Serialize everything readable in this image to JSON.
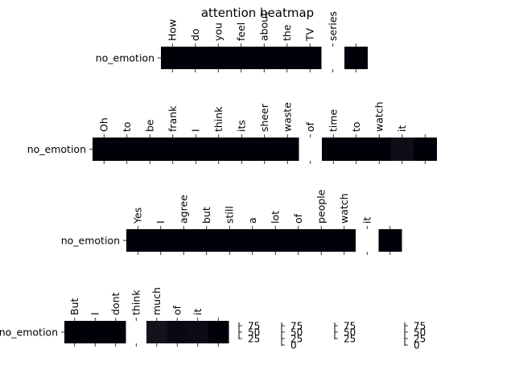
{
  "chart_data": {
    "type": "heatmap",
    "title": "attention heatmap",
    "colormap": "grayscale (0 = black, max = white)",
    "panels": [
      {
        "row_label": "no_emotion",
        "tokens": [
          "How",
          "do",
          "you",
          "feel",
          "about",
          "the",
          "TV",
          "series",
          ""
        ],
        "values": [
          1,
          1,
          1,
          1,
          1,
          1,
          1,
          100,
          1
        ]
      },
      {
        "row_label": "no_emotion",
        "tokens": [
          "Oh",
          "to",
          "be",
          "frank",
          "I",
          "think",
          "its",
          "sheer",
          "waste",
          "of",
          "time",
          "to",
          "watch",
          "it",
          ""
        ],
        "values": [
          1,
          1,
          1,
          1,
          1,
          1,
          1,
          1,
          1,
          100,
          1,
          1,
          1,
          7,
          1
        ]
      },
      {
        "row_label": "no_emotion",
        "tokens": [
          "Yes",
          "I",
          "agree",
          "but",
          "still",
          "a",
          "lot",
          "of",
          "people",
          "watch",
          "it",
          ""
        ],
        "values": [
          1,
          1,
          1,
          1,
          1,
          1,
          1,
          1,
          1,
          1,
          100,
          1
        ]
      },
      {
        "row_label": "no_emotion",
        "tokens": [
          "But",
          "I",
          "dont",
          "think",
          "much",
          "of",
          "it",
          ""
        ],
        "values": [
          1,
          1,
          1,
          100,
          9,
          5,
          6,
          1
        ]
      }
    ],
    "colorbars": [
      {
        "ticks": [
          "75",
          "50",
          "25"
        ]
      },
      {
        "ticks": [
          "75",
          "50",
          "25",
          "0"
        ]
      },
      {
        "ticks": [
          "75",
          "50",
          "25"
        ]
      },
      {
        "ticks": [
          "75",
          "50",
          "25",
          "0"
        ]
      }
    ]
  }
}
